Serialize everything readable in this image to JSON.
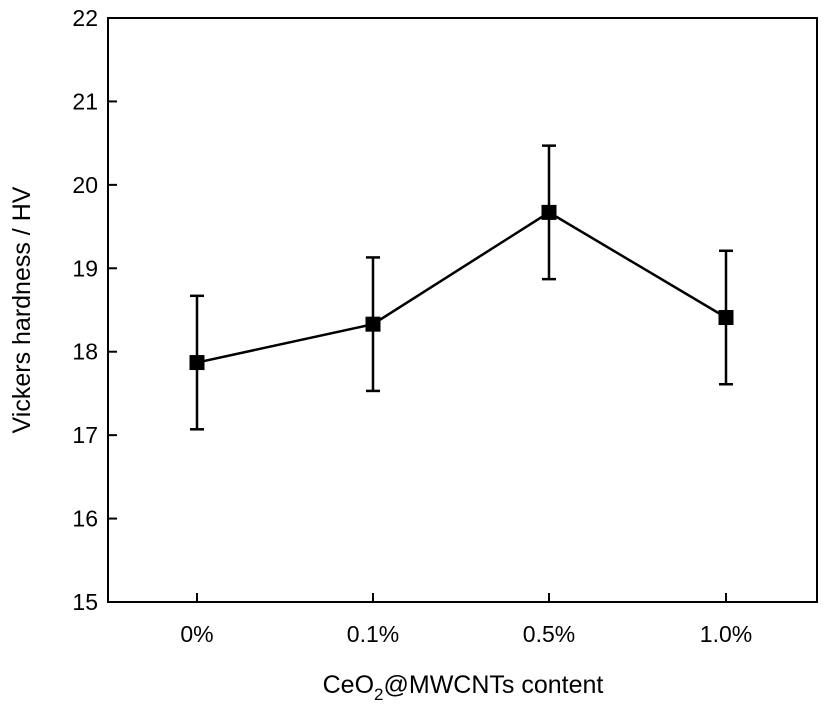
{
  "chart_data": {
    "type": "line",
    "categories": [
      "0%",
      "0.1%",
      "0.5%",
      "1.0%"
    ],
    "values": [
      17.87,
      18.33,
      19.67,
      18.41
    ],
    "errors": [
      0.8,
      0.8,
      0.8,
      0.8
    ],
    "xlabel": {
      "prefix": "CeO",
      "subscript": "2",
      "suffix": "@MWCNTs content"
    },
    "ylabel": "Vickers hardness / HV",
    "ylim": [
      15,
      22
    ],
    "yticks": [
      15,
      16,
      17,
      18,
      19,
      20,
      21,
      22
    ],
    "grid": false,
    "marker": "square",
    "color": "#000000"
  }
}
